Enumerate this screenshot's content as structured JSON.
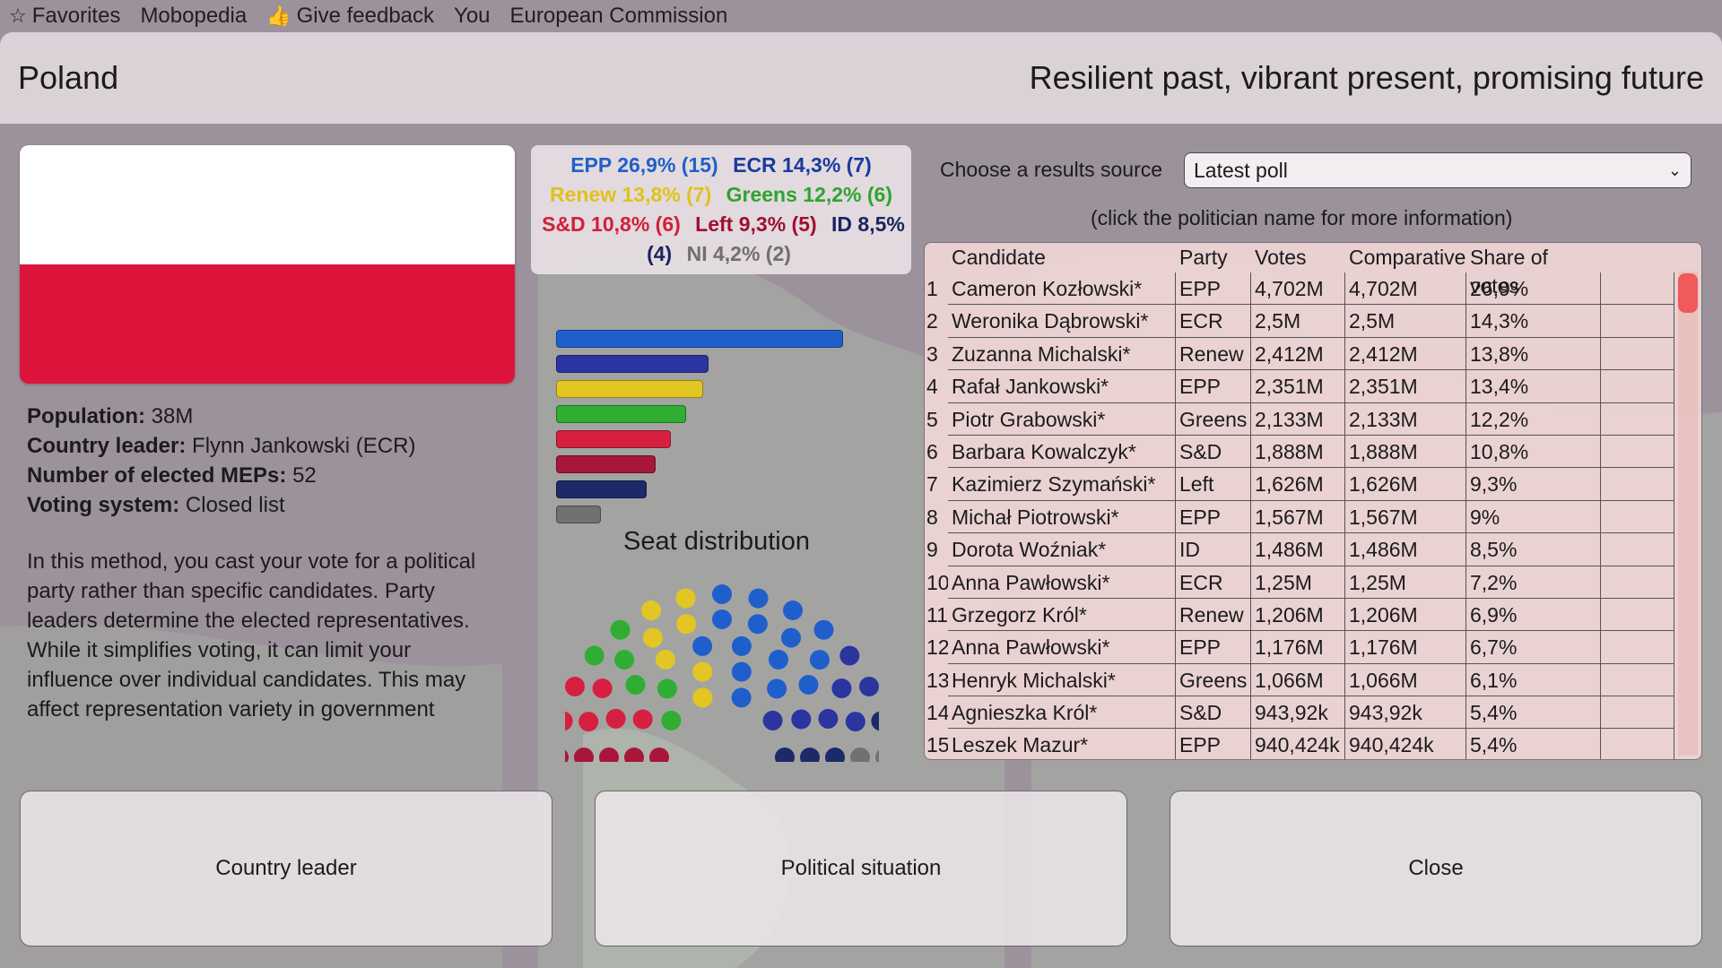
{
  "favorites_bar": {
    "items": [
      {
        "icon": "star-icon",
        "label": "Favorites"
      },
      {
        "icon": "",
        "label": "Mobopedia"
      },
      {
        "icon": "thumbs-up-icon",
        "label": "Give feedback"
      },
      {
        "icon": "",
        "label": "You"
      },
      {
        "icon": "",
        "label": "European Commission"
      }
    ]
  },
  "header": {
    "country": "Poland",
    "slogan": "Resilient past, vibrant present, promising future"
  },
  "flag": {
    "colors": [
      "#ffffff",
      "#dc143c"
    ]
  },
  "info": {
    "population_label": "Population:",
    "population": " 38M",
    "leader_label": "Country leader:",
    "leader": " Flynn Jankowski (ECR)",
    "meps_label": "Number of elected MEPs:",
    "meps": " 52",
    "voting_label": "Voting system:",
    "voting": " Closed list",
    "description": "In this method, you cast your vote for a political party rather than specific candidates. Party leaders determine the elected representatives. While it simplifies voting, it can limit your influence over individual candidates. This may affect representation variety in government"
  },
  "legend": {
    "entries": [
      {
        "text": "EPP 26,9% (15)",
        "color": "#2060c8"
      },
      {
        "text": "ECR 14,3% (7)",
        "color": "#1a3aa0"
      },
      {
        "text": "Renew 13,8% (7)",
        "color": "#e0c21a"
      },
      {
        "text": "Greens 12,2% (6)",
        "color": "#2ea52e"
      },
      {
        "text": "S&D 10,8% (6)",
        "color": "#d0203a"
      },
      {
        "text": "Left 9,3% (5)",
        "color": "#a01030"
      },
      {
        "text": "ID 8,5% (4)",
        "color": "#1a2460"
      },
      {
        "text": "NI 4,2% (2)",
        "color": "#707070"
      }
    ]
  },
  "seat_chart": {
    "title": "Seat distribution",
    "parties": [
      {
        "name": "EPP",
        "share": 26.9,
        "seats": 15,
        "color": "#1f5fcc"
      },
      {
        "name": "ECR",
        "share": 14.3,
        "seats": 7,
        "color": "#2b35a0"
      },
      {
        "name": "Renew",
        "share": 13.8,
        "seats": 7,
        "color": "#e2c623"
      },
      {
        "name": "Greens",
        "share": 12.2,
        "seats": 6,
        "color": "#2fae33"
      },
      {
        "name": "S&D",
        "share": 10.8,
        "seats": 6,
        "color": "#d52041"
      },
      {
        "name": "Left",
        "share": 9.3,
        "seats": 5,
        "color": "#a8163a"
      },
      {
        "name": "ID",
        "share": 8.5,
        "seats": 4,
        "color": "#1c2a6a"
      },
      {
        "name": "NI",
        "share": 4.2,
        "seats": 2,
        "color": "#717171"
      }
    ]
  },
  "results": {
    "source_label": "Choose a results source",
    "source_selected": "Latest poll",
    "hint": "(click the politician name for more information)",
    "columns": [
      "Candidate",
      "Party",
      "Votes",
      "Comparative",
      "Share of votes"
    ],
    "rows": [
      [
        "1",
        "Cameron Kozłowski*",
        "EPP",
        "4,702M",
        "4,702M",
        "26,9%"
      ],
      [
        "2",
        "Weronika Dąbrowski*",
        "ECR",
        "2,5M",
        "2,5M",
        "14,3%"
      ],
      [
        "3",
        "Zuzanna Michalski*",
        "Renew",
        "2,412M",
        "2,412M",
        "13,8%"
      ],
      [
        "4",
        "Rafał Jankowski*",
        "EPP",
        "2,351M",
        "2,351M",
        "13,4%"
      ],
      [
        "5",
        "Piotr Grabowski*",
        "Greens",
        "2,133M",
        "2,133M",
        "12,2%"
      ],
      [
        "6",
        "Barbara Kowalczyk*",
        "S&D",
        "1,888M",
        "1,888M",
        "10,8%"
      ],
      [
        "7",
        "Kazimierz Szymański*",
        "Left",
        "1,626M",
        "1,626M",
        "9,3%"
      ],
      [
        "8",
        "Michał Piotrowski*",
        "EPP",
        "1,567M",
        "1,567M",
        "9%"
      ],
      [
        "9",
        "Dorota Woźniak*",
        "ID",
        "1,486M",
        "1,486M",
        "8,5%"
      ],
      [
        "10",
        "Anna Pawłowski*",
        "ECR",
        "1,25M",
        "1,25M",
        "7,2%"
      ],
      [
        "11",
        "Grzegorz Król*",
        "Renew",
        "1,206M",
        "1,206M",
        "6,9%"
      ],
      [
        "12",
        "Anna Pawłowski*",
        "EPP",
        "1,176M",
        "1,176M",
        "6,7%"
      ],
      [
        "13",
        "Henryk Michalski*",
        "Greens",
        "1,066M",
        "1,066M",
        "6,1%"
      ],
      [
        "14",
        "Agnieszka Król*",
        "S&D",
        "943,92k",
        "943,92k",
        "5,4%"
      ],
      [
        "15",
        "Leszek Mazur*",
        "EPP",
        "940,424k",
        "940,424k",
        "5,4%"
      ]
    ]
  },
  "buttons": {
    "country_leader": "Country leader",
    "political_situation": "Political situation",
    "close": "Close"
  }
}
